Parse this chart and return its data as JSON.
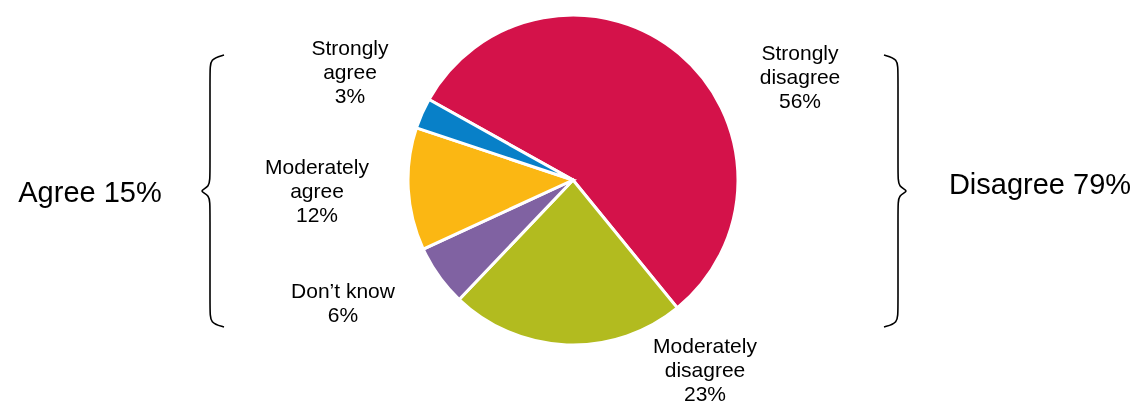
{
  "chart_data": {
    "type": "pie",
    "categories": [
      "Strongly disagree",
      "Moderately disagree",
      "Don’t know",
      "Moderately agree",
      "Strongly agree"
    ],
    "values": [
      56,
      23,
      6,
      12,
      3
    ],
    "value_labels": [
      "56%",
      "23%",
      "6%",
      "12%",
      "3%"
    ],
    "colors": [
      "#d4124a",
      "#b2bb1f",
      "#8062a2",
      "#fbb713",
      "#0880c8"
    ],
    "annotations": [
      "Agree 15%",
      "Disagree 79%"
    ]
  }
}
